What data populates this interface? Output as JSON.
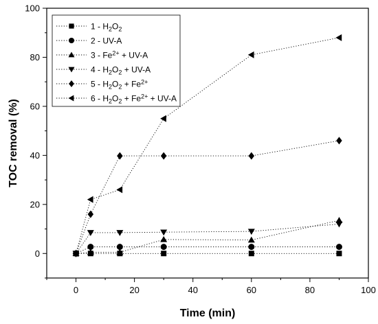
{
  "chart_data": {
    "type": "line",
    "title": "",
    "xlabel": "Time (min)",
    "ylabel": "TOC removal (%)",
    "xlim": [
      -10,
      100
    ],
    "ylim": [
      -10,
      100
    ],
    "x_ticks": [
      0,
      20,
      40,
      60,
      80,
      100
    ],
    "y_ticks": [
      0,
      20,
      40,
      60,
      80,
      100
    ],
    "grid": false,
    "legend_position": "top-left",
    "line_style": "dotted",
    "color": "#000000",
    "x": [
      0,
      5,
      15,
      30,
      60,
      90
    ],
    "series": [
      {
        "label_parts": [
          {
            "t": "1 - H"
          },
          {
            "t": "2",
            "sub": true
          },
          {
            "t": "O"
          },
          {
            "t": "2",
            "sub": true
          }
        ],
        "marker": "square",
        "values": [
          0,
          0,
          0,
          0,
          0,
          0
        ]
      },
      {
        "label_parts": [
          {
            "t": "2 - UV-A"
          }
        ],
        "marker": "circle",
        "values": [
          0,
          2.7,
          2.7,
          2.7,
          2.7,
          2.7
        ]
      },
      {
        "label_parts": [
          {
            "t": "3 - Fe"
          },
          {
            "t": "2+",
            "sup": true
          },
          {
            "t": " + UV-A"
          }
        ],
        "marker": "triangle-up",
        "values": [
          0,
          0.5,
          0.5,
          5.7,
          5.5,
          13.5
        ]
      },
      {
        "label_parts": [
          {
            "t": "4 - H"
          },
          {
            "t": "2",
            "sub": true
          },
          {
            "t": "O"
          },
          {
            "t": "2",
            "sub": true
          },
          {
            "t": " + UV-A"
          }
        ],
        "marker": "triangle-down",
        "values": [
          0,
          8.5,
          8.5,
          8.7,
          9.0,
          12.0
        ]
      },
      {
        "label_parts": [
          {
            "t": "5 - H"
          },
          {
            "t": "2",
            "sub": true
          },
          {
            "t": "O"
          },
          {
            "t": "2",
            "sub": true
          },
          {
            "t": " + Fe"
          },
          {
            "t": "2+",
            "sup": true
          }
        ],
        "marker": "diamond",
        "values": [
          0,
          16,
          39.8,
          39.8,
          39.8,
          46
        ]
      },
      {
        "label_parts": [
          {
            "t": "6 - H"
          },
          {
            "t": "2",
            "sub": true
          },
          {
            "t": "O"
          },
          {
            "t": "2",
            "sub": true
          },
          {
            "t": " + Fe"
          },
          {
            "t": "2+",
            "sup": true
          },
          {
            "t": " + UV-A"
          }
        ],
        "marker": "triangle-left",
        "values": [
          0,
          22,
          26,
          55,
          81,
          88
        ]
      }
    ]
  }
}
